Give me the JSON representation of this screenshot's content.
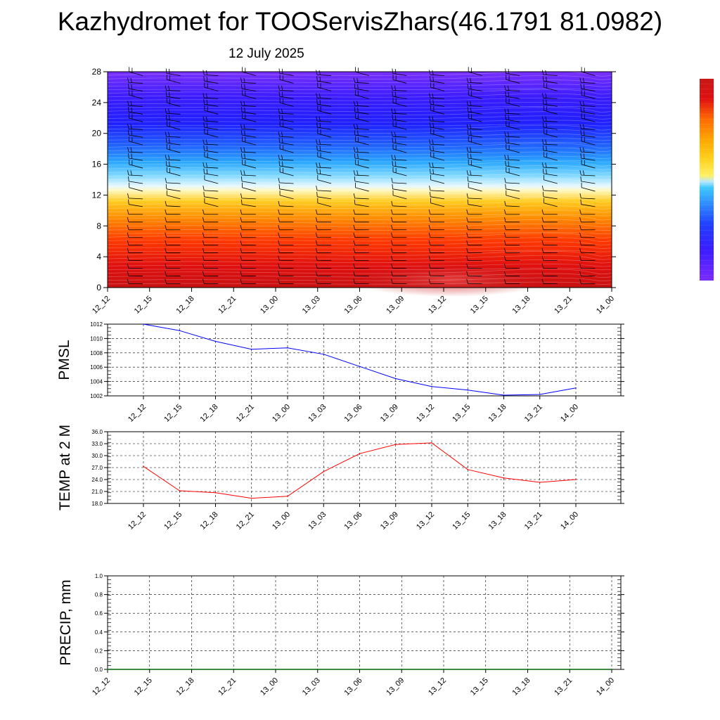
{
  "header": {
    "title": "Kazhydromet for TOOServisZhars(46.1791 81.0982)",
    "subtitle": "12 July 2025"
  },
  "colors": {
    "pmsl_line": "#0000ff",
    "temp_line": "#ff0000",
    "precip_line": "#006400",
    "colorbar": [
      "#7b2cff",
      "#3b1cff",
      "#2040ff",
      "#2f8cff",
      "#3cc8ff",
      "#b8e8ff",
      "#fff066",
      "#ffd21e",
      "#ffa500",
      "#ff6a00",
      "#ff2a00",
      "#e01010",
      "#c81818"
    ]
  },
  "chart_data": [
    {
      "type": "heatmap",
      "name": "cross-section",
      "x_tick_labels": [
        "12_12",
        "12_15",
        "12_18",
        "12_21",
        "13_00",
        "13_03",
        "13_06",
        "13_09",
        "13_12",
        "13_15",
        "13_18",
        "13_21",
        "14_00"
      ],
      "y_tick_labels": [
        "0",
        "4",
        "8",
        "12",
        "16",
        "20",
        "24",
        "28"
      ],
      "ylim": [
        0,
        28
      ],
      "overlay": "wind barbs",
      "grid": false
    },
    {
      "type": "line",
      "ylabel": "PMSL",
      "x_tick_labels": [
        "12_12",
        "12_15",
        "12_18",
        "12_21",
        "13_00",
        "13_03",
        "13_06",
        "13_09",
        "13_12",
        "13_15",
        "13_18",
        "13_21",
        "14_00"
      ],
      "y_tick_labels": [
        "1002",
        "1004",
        "1006",
        "1008",
        "1010",
        "1012"
      ],
      "ylim": [
        1002,
        1012
      ],
      "values": [
        1012.0,
        1011.1,
        1009.6,
        1008.5,
        1008.7,
        1007.8,
        1006.1,
        1004.4,
        1003.3,
        1002.8,
        1002.1,
        1002.2,
        1003.1
      ],
      "grid": true
    },
    {
      "type": "line",
      "ylabel": "TEMP at 2 M",
      "x_tick_labels": [
        "12_12",
        "12_15",
        "12_18",
        "12_21",
        "13_00",
        "13_03",
        "13_06",
        "13_09",
        "13_12",
        "13_15",
        "13_18",
        "13_21",
        "14_00"
      ],
      "y_tick_labels": [
        "18.0",
        "21.0",
        "24.0",
        "27.0",
        "30.0",
        "33.0",
        "36.0"
      ],
      "ylim": [
        18,
        36
      ],
      "values": [
        27.3,
        21.2,
        20.7,
        19.3,
        19.8,
        26.0,
        30.5,
        32.8,
        33.2,
        26.5,
        24.4,
        23.3,
        24.0
      ],
      "grid": true
    },
    {
      "type": "line",
      "ylabel": "PRECIP, mm",
      "x_tick_labels": [
        "12_12",
        "12_15",
        "12_18",
        "12_21",
        "13_00",
        "13_03",
        "13_06",
        "13_09",
        "13_12",
        "13_15",
        "13_18",
        "13_21",
        "14_00"
      ],
      "y_tick_labels": [
        "0.0",
        "0.2",
        "0.4",
        "0.6",
        "0.8",
        "1.0"
      ],
      "ylim": [
        0,
        1
      ],
      "values": [
        0,
        0,
        0,
        0,
        0,
        0,
        0,
        0,
        0,
        0,
        0,
        0,
        0
      ],
      "grid": true
    }
  ]
}
